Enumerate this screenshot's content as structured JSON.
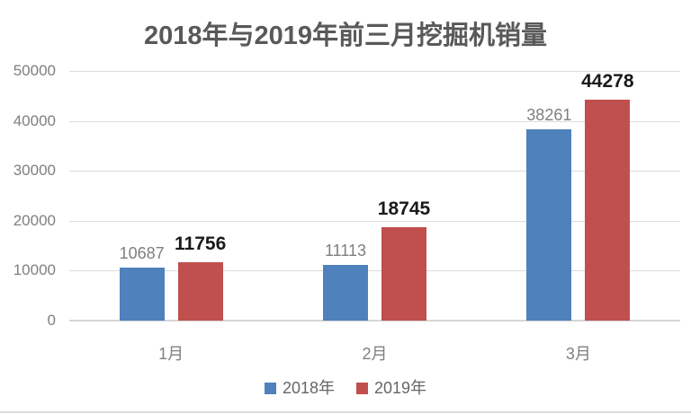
{
  "chart_data": {
    "type": "bar",
    "title": "2018年与2019年前三月挖掘机销量",
    "categories": [
      "1月",
      "2月",
      "3月"
    ],
    "series": [
      {
        "name": "2018年",
        "values": [
          10687,
          11113,
          38261
        ],
        "color": "#4F81BD",
        "label_color": "#7f7f7f",
        "label_bold": false
      },
      {
        "name": "2019年",
        "values": [
          11756,
          18745,
          44278
        ],
        "color": "#C0504D",
        "label_color": "#1a1a1a",
        "label_bold": true
      }
    ],
    "xlabel": "",
    "ylabel": "",
    "ylim": [
      0,
      50000
    ],
    "ytick_values": [
      0,
      10000,
      20000,
      30000,
      40000,
      50000
    ],
    "ytick_labels": [
      "0",
      "10000",
      "20000",
      "30000",
      "40000",
      "50000"
    ],
    "grid": true,
    "legend_position": "bottom",
    "data_labels_visible": true
  }
}
